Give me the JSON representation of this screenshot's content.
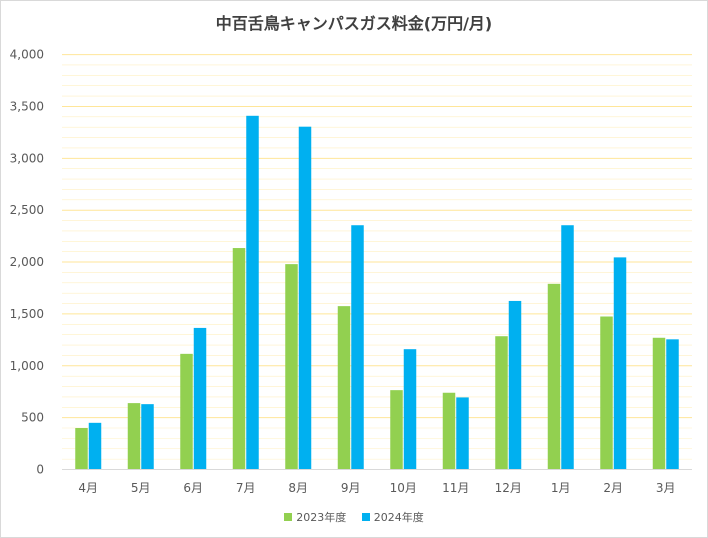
{
  "chart_data": {
    "type": "bar",
    "title": "中百舌鳥キャンパスガス料金(万円/月)",
    "xlabel": "",
    "ylabel": "",
    "categories": [
      "4月",
      "5月",
      "6月",
      "7月",
      "8月",
      "9月",
      "10月",
      "11月",
      "12月",
      "1月",
      "2月",
      "3月"
    ],
    "series": [
      {
        "name": "2023年度",
        "color": "#92d050",
        "values": [
          400,
          640,
          1115,
          2135,
          1980,
          1575,
          765,
          740,
          1285,
          1790,
          1475,
          1270
        ]
      },
      {
        "name": "2024年度",
        "color": "#00b0f0",
        "values": [
          450,
          630,
          1365,
          3410,
          3305,
          2355,
          1160,
          695,
          1625,
          2355,
          2045,
          1255
        ]
      }
    ],
    "ylim": [
      0,
      4000
    ],
    "yticks": [
      0,
      500,
      1000,
      1500,
      2000,
      2500,
      3000,
      3500,
      4000
    ],
    "ytick_labels": [
      "0",
      "500",
      "1,000",
      "1,500",
      "2,000",
      "2,500",
      "3,000",
      "3,500",
      "4,000"
    ],
    "grid": true,
    "grid_color": "#ffe699",
    "legend_position": "bottom"
  }
}
